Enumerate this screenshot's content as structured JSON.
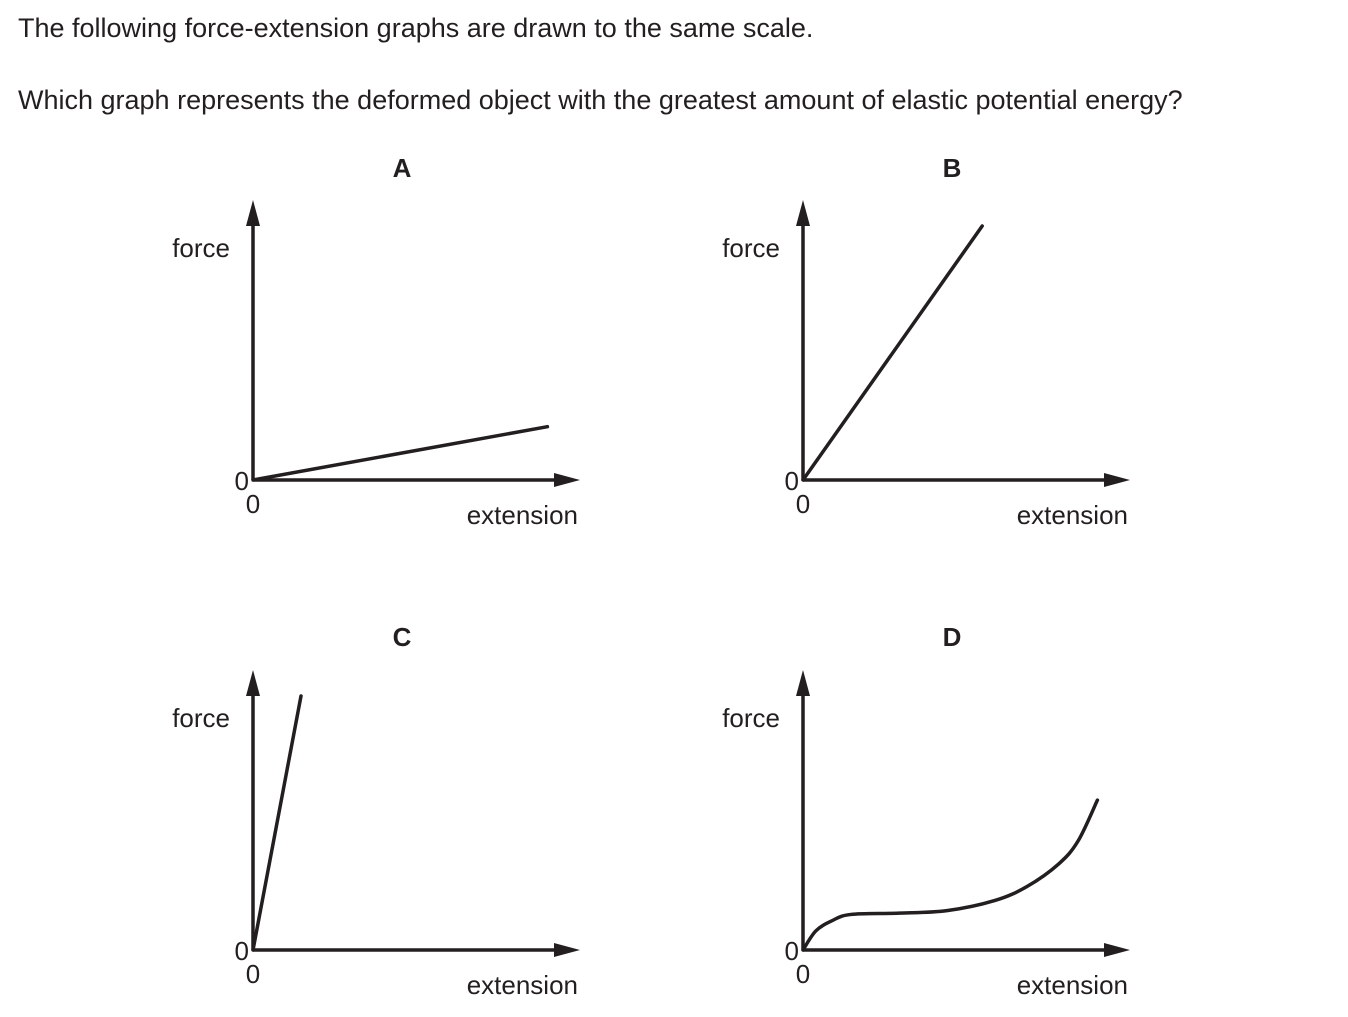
{
  "question": {
    "line1": "The following force-extension graphs are drawn to the same scale.",
    "line2": "Which graph represents the deformed object with the greatest amount of elastic potential energy?"
  },
  "colors": {
    "ink": "#231f20",
    "background": "#ffffff"
  },
  "chart_data": [
    {
      "type": "line",
      "title": "A",
      "xlabel": "extension",
      "ylabel": "force",
      "x_tick_labels": [
        "0"
      ],
      "y_tick_labels": [
        "0"
      ],
      "xlim": [
        0,
        10
      ],
      "ylim": [
        0,
        10
      ],
      "grid": false,
      "series": [
        {
          "x": [
            0,
            9.2
          ],
          "y": [
            0,
            2.1
          ]
        }
      ]
    },
    {
      "type": "line",
      "title": "B",
      "xlabel": "extension",
      "ylabel": "force",
      "x_tick_labels": [
        "0"
      ],
      "y_tick_labels": [
        "0"
      ],
      "xlim": [
        0,
        10
      ],
      "ylim": [
        0,
        10
      ],
      "grid": false,
      "series": [
        {
          "x": [
            0,
            5.6
          ],
          "y": [
            0,
            10
          ]
        }
      ]
    },
    {
      "type": "line",
      "title": "C",
      "xlabel": "extension",
      "ylabel": "force",
      "x_tick_labels": [
        "0"
      ],
      "y_tick_labels": [
        "0"
      ],
      "xlim": [
        0,
        10
      ],
      "ylim": [
        0,
        10
      ],
      "grid": false,
      "series": [
        {
          "x": [
            0,
            1.5
          ],
          "y": [
            0,
            10
          ]
        }
      ]
    },
    {
      "type": "line",
      "title": "D",
      "xlabel": "extension",
      "ylabel": "force",
      "x_tick_labels": [
        "0"
      ],
      "y_tick_labels": [
        "0"
      ],
      "xlim": [
        0,
        10
      ],
      "ylim": [
        0,
        10
      ],
      "grid": false,
      "series": [
        {
          "x": [
            0,
            0.4,
            0.9,
            1.5,
            3.0,
            4.5,
            6.0,
            7.0,
            8.0,
            8.6,
            9.2
          ],
          "y": [
            0,
            0.75,
            1.15,
            1.4,
            1.45,
            1.55,
            1.95,
            2.5,
            3.4,
            4.3,
            5.9
          ]
        }
      ]
    }
  ]
}
